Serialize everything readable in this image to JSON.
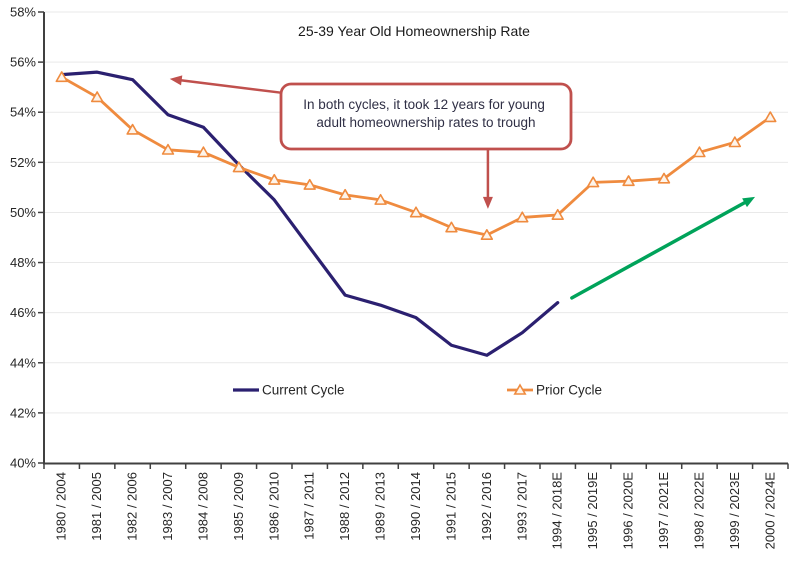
{
  "chart_data": {
    "type": "line",
    "title": "25-39 Year Old Homeownership Rate",
    "categories": [
      "1980 / 2004",
      "1981 / 2005",
      "1982 / 2006",
      "1983 / 2007",
      "1984 / 2008",
      "1985 / 2009",
      "1986 / 2010",
      "1987 / 2011",
      "1988 / 2012",
      "1989 / 2013",
      "1990 / 2014",
      "1991 / 2015",
      "1992 / 2016",
      "1993 / 2017",
      "1994 / 2018E",
      "1995 / 2019E",
      "1996 / 2020E",
      "1997 / 2021E",
      "1998 / 2022E",
      "1999 / 2023E",
      "2000 / 2024E"
    ],
    "series": [
      {
        "name": "Current Cycle",
        "color": "#2B2070",
        "marker": "none",
        "line_width": 3.2,
        "values": [
          55.5,
          55.6,
          55.3,
          53.9,
          53.4,
          51.9,
          50.5,
          48.6,
          46.7,
          46.3,
          45.8,
          44.7,
          44.3,
          45.2,
          46.4,
          null,
          null,
          null,
          null,
          null,
          null
        ]
      },
      {
        "name": "Prior Cycle",
        "color": "#EF8B3F",
        "marker": "triangle",
        "marker_fill": "#FDF4EB",
        "line_width": 2.8,
        "values": [
          55.4,
          54.6,
          53.3,
          52.5,
          52.4,
          51.8,
          51.3,
          51.1,
          50.7,
          50.5,
          50.0,
          49.4,
          49.1,
          49.8,
          49.9,
          51.2,
          51.25,
          51.35,
          52.4,
          52.8,
          53.8
        ]
      }
    ],
    "ylim": [
      40,
      58
    ],
    "ytick_step": 2,
    "ytick_suffix": "%",
    "grid": true,
    "legend_position": "inside-bottom",
    "annotation": {
      "line1": "In both cycles, it took 12 years for young",
      "line2": "adult homeownership rates to trough",
      "border_color": "#C0504D",
      "text_color": "#2F2F45"
    },
    "arrows": [
      {
        "name": "annotation-arrow-left",
        "color": "#C0504D",
        "width": 2.5,
        "from": {
          "i": 6.19,
          "v": 54.78
        },
        "to": {
          "i": 3.05,
          "v": 55.33
        }
      },
      {
        "name": "annotation-arrow-down",
        "color": "#C0504D",
        "width": 2.5,
        "from": {
          "i": 12.03,
          "v": 52.53
        },
        "to": {
          "i": 12.03,
          "v": 50.14
        }
      },
      {
        "name": "projection-arrow",
        "color": "#00A35A",
        "width": 3.5,
        "from": {
          "i": 14.4,
          "v": 46.59
        },
        "to": {
          "i": 19.57,
          "v": 50.62
        }
      }
    ],
    "colors": {
      "grid": "#E9E9E9",
      "axis": "#404040",
      "tick_label": "#262626",
      "title": "#1A1A1A"
    }
  }
}
